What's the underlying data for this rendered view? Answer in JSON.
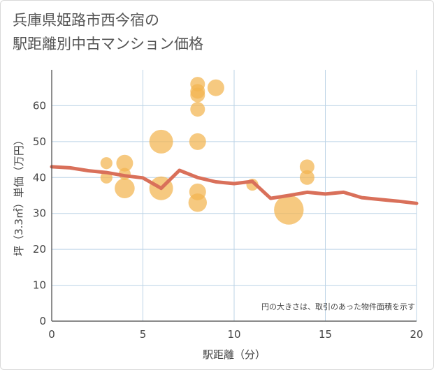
{
  "title": "兵庫県姫路市西今宿の\n駅距離別中古マンション価格",
  "chart_data": {
    "type": "scatter",
    "xlabel": "駅距離（分）",
    "ylabel": "坪（3.3㎡）単価（万円）",
    "xlim": [
      0,
      20
    ],
    "ylim": [
      0,
      70
    ],
    "x_ticks": [
      "0",
      "5",
      "10",
      "15",
      "20"
    ],
    "y_ticks": [
      "0",
      "10",
      "20",
      "30",
      "40",
      "50",
      "60"
    ],
    "grid": true,
    "note": "円の大きさは、取引のあった物件面積を示す",
    "colors": {
      "bubble": "#f2b44f",
      "line": "#d9705a",
      "grid": "#bcd3e6",
      "axis": "#444444"
    },
    "scatter_points": [
      {
        "x": 3,
        "y": 44,
        "size": 1
      },
      {
        "x": 3,
        "y": 40,
        "size": 1
      },
      {
        "x": 4,
        "y": 44,
        "size": 3
      },
      {
        "x": 4,
        "y": 41,
        "size": 1
      },
      {
        "x": 4,
        "y": 37,
        "size": 5
      },
      {
        "x": 6,
        "y": 50,
        "size": 8
      },
      {
        "x": 6,
        "y": 37,
        "size": 8
      },
      {
        "x": 8,
        "y": 66,
        "size": 2
      },
      {
        "x": 8,
        "y": 64,
        "size": 2
      },
      {
        "x": 8,
        "y": 63,
        "size": 2
      },
      {
        "x": 8,
        "y": 59,
        "size": 2
      },
      {
        "x": 8,
        "y": 50,
        "size": 3
      },
      {
        "x": 8,
        "y": 36,
        "size": 3
      },
      {
        "x": 8,
        "y": 33,
        "size": 4
      },
      {
        "x": 9,
        "y": 65,
        "size": 3
      },
      {
        "x": 11,
        "y": 38,
        "size": 1
      },
      {
        "x": 13,
        "y": 31,
        "size": 14
      },
      {
        "x": 14,
        "y": 43,
        "size": 2
      },
      {
        "x": 14,
        "y": 40,
        "size": 2
      }
    ],
    "trend_line": {
      "x": [
        0,
        1,
        2,
        3,
        4,
        5,
        6,
        7,
        8,
        9,
        10,
        11,
        12,
        13,
        14,
        15,
        16,
        17,
        18,
        19,
        20
      ],
      "y": [
        43,
        42.7,
        41.9,
        41.4,
        40.5,
        39.9,
        37,
        42,
        40,
        38.8,
        38.3,
        38.9,
        34.2,
        35,
        35.9,
        35.4,
        35.9,
        34.4,
        33.9,
        33.4,
        32.8
      ]
    }
  }
}
